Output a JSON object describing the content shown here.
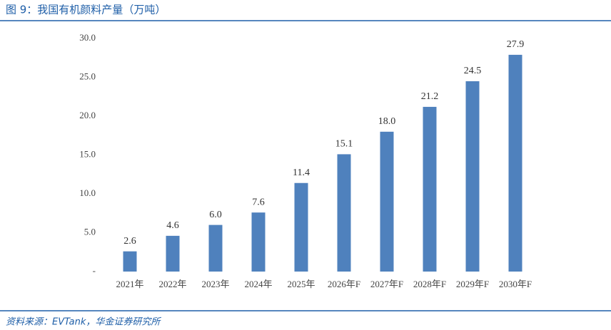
{
  "chart_data": {
    "type": "bar",
    "title": "图 9：我国有机颜料产量（万吨）",
    "source": "资料来源：EVTank，华金证券研究所",
    "categories": [
      "2021年",
      "2022年",
      "2023年",
      "2024年",
      "2025年",
      "2026年F",
      "2027年F",
      "2028年F",
      "2029年F",
      "2030年F"
    ],
    "values": [
      2.6,
      4.6,
      6.0,
      7.6,
      11.4,
      15.1,
      18.0,
      21.2,
      24.5,
      27.9
    ],
    "value_labels": [
      "2.6",
      "4.6",
      "6.0",
      "7.6",
      "11.4",
      "15.1",
      "18.0",
      "21.2",
      "24.5",
      "27.9"
    ],
    "color": "#4f81bd",
    "ylim": [
      0,
      30
    ],
    "yticks": [
      {
        "value": 0,
        "label": "-"
      },
      {
        "value": 5,
        "label": "5.0"
      },
      {
        "value": 10,
        "label": "10.0"
      },
      {
        "value": 15,
        "label": "15.0"
      },
      {
        "value": 20,
        "label": "20.0"
      },
      {
        "value": 25,
        "label": "25.0"
      },
      {
        "value": 30,
        "label": "30.0"
      }
    ],
    "grid": false
  }
}
